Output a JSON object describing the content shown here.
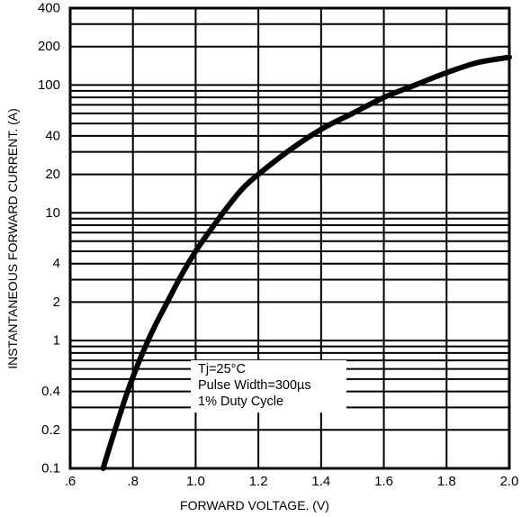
{
  "chart_data": {
    "type": "line",
    "title": "",
    "xlabel": "FORWARD VOLTAGE. (V)",
    "ylabel": "INSTANTANEOUS FORWARD CURRENT. (A)",
    "xlim": [
      0.6,
      2.0
    ],
    "ylim": [
      0.1,
      400
    ],
    "y_scale": "log",
    "grid": true,
    "x_ticks": [
      {
        "value": 0.6,
        "label": ".6"
      },
      {
        "value": 0.8,
        "label": ".8"
      },
      {
        "value": 1.0,
        "label": "1.0"
      },
      {
        "value": 1.2,
        "label": "1.2"
      },
      {
        "value": 1.4,
        "label": "1.4"
      },
      {
        "value": 1.6,
        "label": "1.6"
      },
      {
        "value": 1.8,
        "label": "1.8"
      },
      {
        "value": 2.0,
        "label": "2.0"
      }
    ],
    "y_ticks": [
      {
        "value": 0.1,
        "label": "0.1"
      },
      {
        "value": 0.2,
        "label": "0.2"
      },
      {
        "value": 0.4,
        "label": "0.4"
      },
      {
        "value": 1,
        "label": "1"
      },
      {
        "value": 2,
        "label": "2"
      },
      {
        "value": 4,
        "label": "4"
      },
      {
        "value": 10,
        "label": "10"
      },
      {
        "value": 20,
        "label": "20"
      },
      {
        "value": 40,
        "label": "40"
      },
      {
        "value": 100,
        "label": "100"
      },
      {
        "value": 200,
        "label": "200"
      },
      {
        "value": 400,
        "label": "400"
      }
    ],
    "y_grid_lines": [
      0.1,
      0.2,
      0.3,
      0.4,
      0.5,
      0.6,
      0.7,
      0.8,
      0.9,
      1,
      2,
      3,
      4,
      5,
      6,
      7,
      8,
      9,
      10,
      20,
      30,
      40,
      50,
      60,
      70,
      80,
      90,
      100,
      200,
      300,
      400
    ],
    "series": [
      {
        "x": [
          0.705,
          0.74,
          0.78,
          0.81,
          0.84,
          0.87,
          0.9,
          0.95,
          1.0,
          1.05,
          1.1,
          1.15,
          1.2,
          1.3,
          1.4,
          1.5,
          1.6,
          1.7,
          1.8,
          1.9,
          2.0
        ],
        "y": [
          0.1,
          0.19,
          0.38,
          0.6,
          0.9,
          1.3,
          1.8,
          3.1,
          5.0,
          7.5,
          11,
          15.5,
          20,
          31,
          45,
          60,
          80,
          100,
          125,
          150,
          165
        ]
      }
    ],
    "annotations": [
      "Tj=25°C",
      "Pulse Width=300µs",
      "1% Duty Cycle"
    ]
  }
}
